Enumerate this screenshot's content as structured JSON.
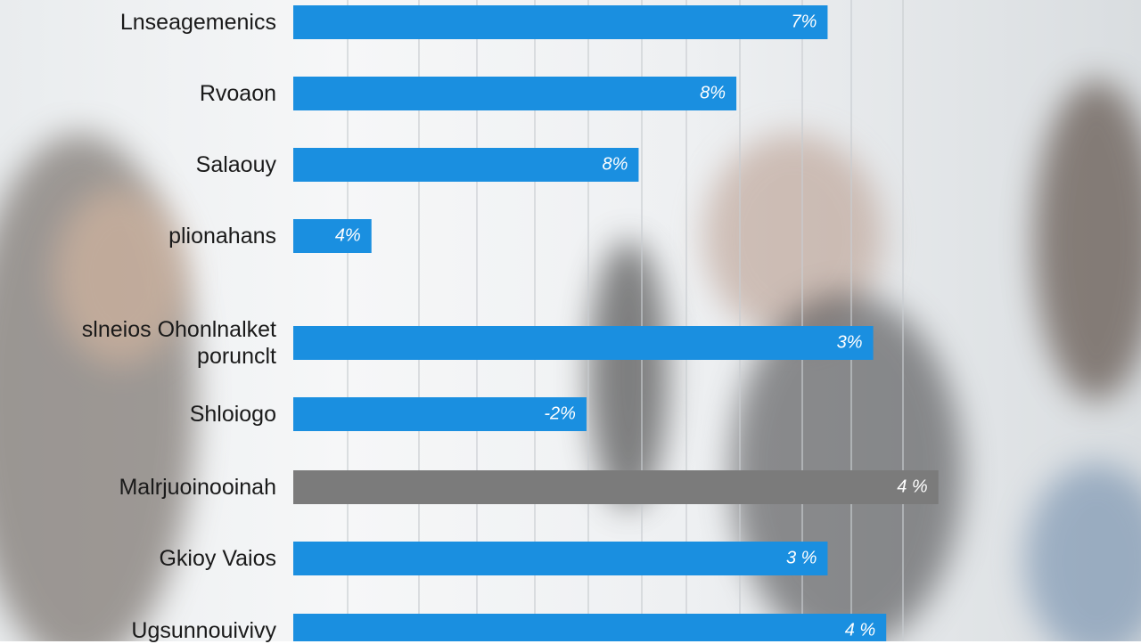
{
  "chart_data": {
    "type": "barh",
    "categories": [
      "Lnseagemenics",
      "Rvoaon",
      "Salaouy",
      "plionahans",
      "slneios Ohonlnalket\nporunclt",
      "Shloiogo",
      "Malrjuoinooinah",
      "Gkioy Vaios",
      "Ugsunnouivivy"
    ],
    "values": [
      82,
      68,
      53,
      12,
      89,
      45,
      99,
      82,
      91
    ],
    "bar_texts": [
      "7%",
      "8%",
      "8%",
      "4%",
      "3%",
      "-2%",
      "4 %",
      "3 %",
      "4 %"
    ],
    "colors": [
      "#1a8fe0",
      "#1a8fe0",
      "#1a8fe0",
      "#1a8fe0",
      "#1a8fe0",
      "#1a8fe0",
      "#7b7b7b",
      "#1a8fe0",
      "#1a8fe0"
    ],
    "xlim": [
      0,
      100
    ]
  }
}
